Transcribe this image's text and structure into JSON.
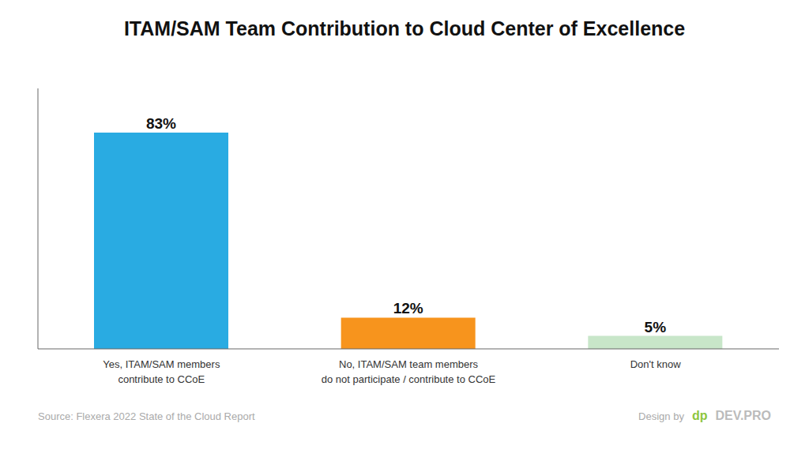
{
  "chart_data": {
    "type": "bar",
    "title": "ITAM/SAM Team Contribution to Cloud Center of Excellence",
    "categories": [
      "Yes, ITAM/SAM members\ncontribute to CCoE",
      "No, ITAM/SAM team members\ndo not participate / contribute to CCoE",
      "Don't know"
    ],
    "values": [
      83,
      12,
      5
    ],
    "value_labels": [
      "83%",
      "12%",
      "5%"
    ],
    "data_labels": true,
    "colors": [
      "#29ABE2",
      "#F7941D",
      "#C8E6C9"
    ],
    "ylim": [
      0,
      100
    ],
    "tick_labels": "x",
    "grid": false,
    "annotations": [
      "Source: Flexera 2022 State of the Cloud Report",
      "Design by",
      "dp",
      "DEV.PRO"
    ]
  }
}
